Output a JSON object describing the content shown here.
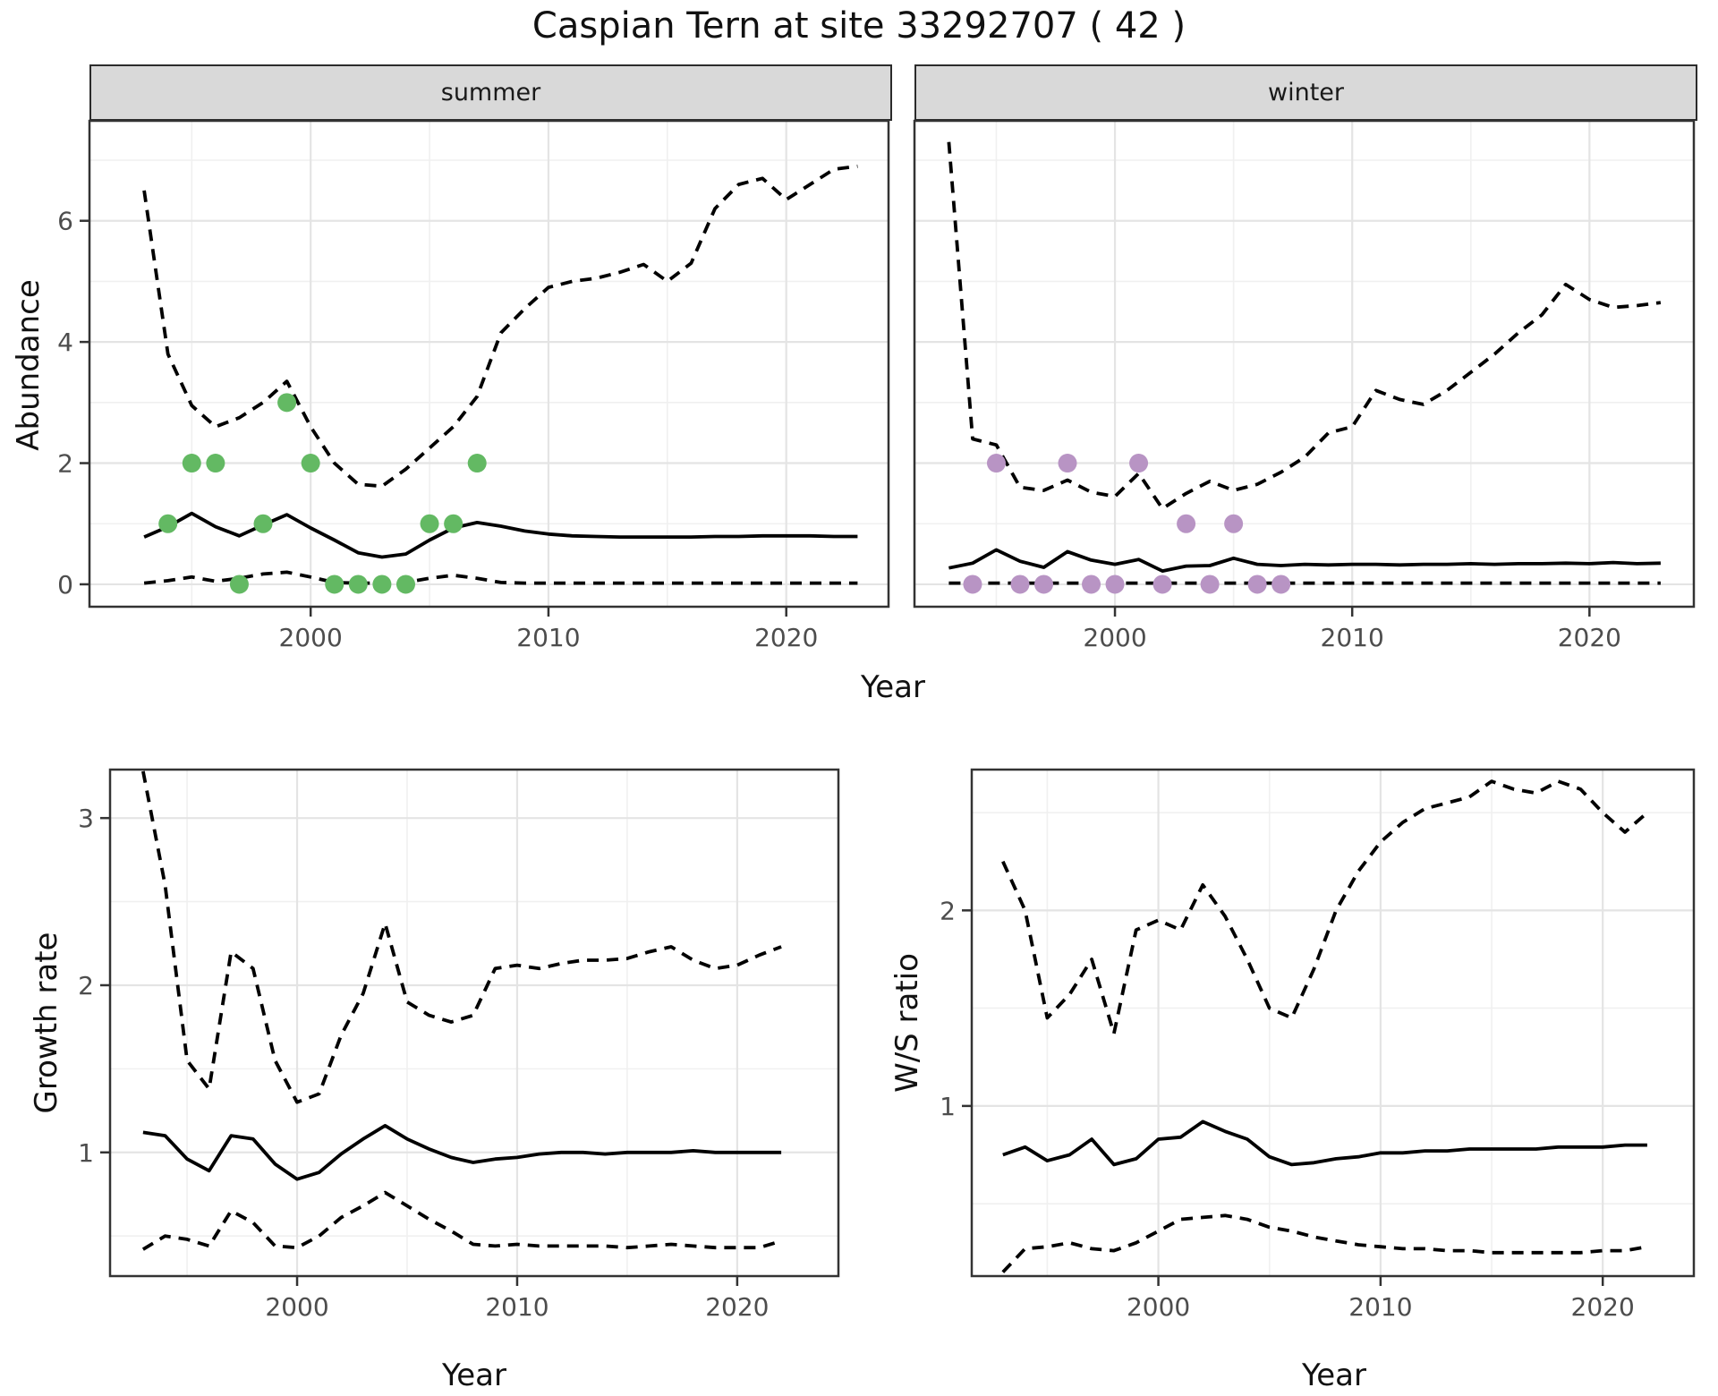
{
  "title": "Caspian Tern at site 33292707 ( 42 )",
  "facets": {
    "summer_label": "summer",
    "winter_label": "winter"
  },
  "axis_titles": {
    "x": "Year",
    "abundance": "Abundance",
    "growth": "Growth rate",
    "ws": "W/S ratio"
  },
  "colors": {
    "summer_points": "#63b963",
    "winter_points": "#b894c4",
    "line": "#000000",
    "panel_border": "#333333",
    "grid_major": "#e4e4e4",
    "grid_minor": "#f0f0f0",
    "strip_fill": "#d9d9d9",
    "tick_label": "#4d4d4d",
    "background": "#ffffff"
  },
  "chart_data": [
    {
      "id": "abundance-summer",
      "type": "line",
      "facet": "summer",
      "xlabel": "Year",
      "ylabel": "Abundance",
      "x_tick_labels": [
        "2000",
        "2010",
        "2020"
      ],
      "y_tick_labels": [
        "0",
        "2",
        "4",
        "6"
      ],
      "xlim": [
        1990.7,
        2024.3
      ],
      "ylim": [
        -0.37,
        7.65
      ],
      "grid": true,
      "legend": "none",
      "years": [
        1993,
        1994,
        1995,
        1996,
        1997,
        1998,
        1999,
        2000,
        2001,
        2002,
        2003,
        2004,
        2005,
        2006,
        2007,
        2008,
        2009,
        2010,
        2011,
        2012,
        2013,
        2014,
        2015,
        2016,
        2017,
        2018,
        2019,
        2020,
        2021,
        2022,
        2023
      ],
      "series": [
        {
          "name": "median",
          "style": "solid",
          "values": [
            0.78,
            0.95,
            1.17,
            0.95,
            0.8,
            0.98,
            1.15,
            0.93,
            0.73,
            0.52,
            0.45,
            0.5,
            0.73,
            0.93,
            1.02,
            0.96,
            0.88,
            0.83,
            0.8,
            0.79,
            0.78,
            0.78,
            0.78,
            0.78,
            0.79,
            0.79,
            0.8,
            0.8,
            0.8,
            0.79,
            0.79
          ]
        },
        {
          "name": "upper-ci",
          "style": "dashed",
          "values": [
            6.5,
            3.8,
            2.95,
            2.6,
            2.75,
            3.0,
            3.35,
            2.6,
            2.0,
            1.65,
            1.62,
            1.9,
            2.25,
            2.6,
            3.1,
            4.15,
            4.55,
            4.9,
            5.0,
            5.05,
            5.15,
            5.28,
            5.0,
            5.3,
            6.2,
            6.6,
            6.7,
            6.35,
            6.6,
            6.85,
            6.9
          ]
        },
        {
          "name": "lower-ci",
          "style": "dashed",
          "values": [
            0.02,
            0.06,
            0.12,
            0.05,
            0.1,
            0.17,
            0.2,
            0.12,
            0.03,
            0.02,
            0.02,
            0.03,
            0.1,
            0.15,
            0.1,
            0.03,
            0.02,
            0.02,
            0.02,
            0.02,
            0.02,
            0.02,
            0.02,
            0.02,
            0.02,
            0.02,
            0.02,
            0.02,
            0.02,
            0.02,
            0.02
          ]
        }
      ],
      "observations": [
        [
          1994,
          1
        ],
        [
          1995,
          2
        ],
        [
          1996,
          2
        ],
        [
          1997,
          0
        ],
        [
          1998,
          1
        ],
        [
          1999,
          3
        ],
        [
          2000,
          2
        ],
        [
          2001,
          0
        ],
        [
          2002,
          0
        ],
        [
          2003,
          0
        ],
        [
          2004,
          0
        ],
        [
          2005,
          1
        ],
        [
          2006,
          1
        ],
        [
          2007,
          2
        ]
      ],
      "point_color": "#63b963"
    },
    {
      "id": "abundance-winter",
      "type": "line",
      "facet": "winter",
      "xlabel": "Year",
      "ylabel": "Abundance",
      "x_tick_labels": [
        "2000",
        "2010",
        "2020"
      ],
      "y_tick_labels": [],
      "xlim": [
        1991.55,
        2024.4
      ],
      "ylim": [
        -0.37,
        7.65
      ],
      "grid": true,
      "legend": "none",
      "years": [
        1993,
        1994,
        1995,
        1996,
        1997,
        1998,
        1999,
        2000,
        2001,
        2002,
        2003,
        2004,
        2005,
        2006,
        2007,
        2008,
        2009,
        2010,
        2011,
        2012,
        2013,
        2014,
        2015,
        2016,
        2017,
        2018,
        2019,
        2020,
        2021,
        2022,
        2023
      ],
      "series": [
        {
          "name": "median",
          "style": "solid",
          "values": [
            0.27,
            0.35,
            0.57,
            0.38,
            0.28,
            0.54,
            0.4,
            0.33,
            0.41,
            0.22,
            0.3,
            0.31,
            0.43,
            0.33,
            0.31,
            0.33,
            0.32,
            0.33,
            0.33,
            0.32,
            0.33,
            0.33,
            0.34,
            0.33,
            0.34,
            0.34,
            0.35,
            0.34,
            0.36,
            0.34,
            0.35
          ]
        },
        {
          "name": "upper-ci",
          "style": "dashed",
          "values": [
            7.3,
            2.4,
            2.3,
            1.6,
            1.55,
            1.72,
            1.52,
            1.45,
            1.83,
            1.25,
            1.5,
            1.7,
            1.55,
            1.65,
            1.85,
            2.1,
            2.5,
            2.6,
            3.2,
            3.05,
            2.97,
            3.2,
            3.5,
            3.8,
            4.15,
            4.45,
            4.95,
            4.7,
            4.57,
            4.6,
            4.65
          ]
        },
        {
          "name": "lower-ci",
          "style": "dashed",
          "values": [
            0.02,
            0.02,
            0.02,
            0.02,
            0.02,
            0.02,
            0.02,
            0.02,
            0.02,
            0.02,
            0.02,
            0.02,
            0.02,
            0.02,
            0.02,
            0.02,
            0.02,
            0.02,
            0.02,
            0.02,
            0.02,
            0.02,
            0.02,
            0.02,
            0.02,
            0.02,
            0.02,
            0.02,
            0.02,
            0.02,
            0.02
          ]
        }
      ],
      "observations": [
        [
          1994,
          0
        ],
        [
          1995,
          2
        ],
        [
          1996,
          0
        ],
        [
          1997,
          0
        ],
        [
          1998,
          2
        ],
        [
          1999,
          0
        ],
        [
          2000,
          0
        ],
        [
          2001,
          2
        ],
        [
          2002,
          0
        ],
        [
          2003,
          1
        ],
        [
          2004,
          0
        ],
        [
          2005,
          1
        ],
        [
          2006,
          0
        ],
        [
          2007,
          0
        ]
      ],
      "point_color": "#b894c4"
    },
    {
      "id": "growth-rate",
      "type": "line",
      "facet": null,
      "xlabel": "Year",
      "ylabel": "Growth rate",
      "x_tick_labels": [
        "2000",
        "2010",
        "2020"
      ],
      "y_tick_labels": [
        "1",
        "2",
        "3"
      ],
      "xlim": [
        1991.5,
        2024.6
      ],
      "ylim": [
        0.26,
        3.29
      ],
      "grid": true,
      "legend": "none",
      "years": [
        1993,
        1994,
        1995,
        1996,
        1997,
        1998,
        1999,
        2000,
        2001,
        2002,
        2003,
        2004,
        2005,
        2006,
        2007,
        2008,
        2009,
        2010,
        2011,
        2012,
        2013,
        2014,
        2015,
        2016,
        2017,
        2018,
        2019,
        2020,
        2021,
        2022
      ],
      "series": [
        {
          "name": "median",
          "style": "solid",
          "values": [
            1.12,
            1.1,
            0.96,
            0.89,
            1.1,
            1.08,
            0.93,
            0.84,
            0.88,
            0.99,
            1.08,
            1.16,
            1.08,
            1.02,
            0.97,
            0.94,
            0.96,
            0.97,
            0.99,
            1.0,
            1.0,
            0.99,
            1.0,
            1.0,
            1.0,
            1.01,
            1.0,
            1.0,
            1.0,
            1.0
          ]
        },
        {
          "name": "upper-ci",
          "style": "dashed",
          "values": [
            3.28,
            2.6,
            1.55,
            1.38,
            2.2,
            2.1,
            1.55,
            1.3,
            1.35,
            1.7,
            1.95,
            2.37,
            1.9,
            1.82,
            1.78,
            1.82,
            2.1,
            2.12,
            2.1,
            2.13,
            2.15,
            2.15,
            2.16,
            2.2,
            2.23,
            2.15,
            2.1,
            2.12,
            2.18,
            2.23
          ]
        },
        {
          "name": "lower-ci",
          "style": "dashed",
          "values": [
            0.42,
            0.5,
            0.48,
            0.44,
            0.65,
            0.58,
            0.44,
            0.43,
            0.5,
            0.61,
            0.68,
            0.76,
            0.68,
            0.6,
            0.53,
            0.45,
            0.44,
            0.45,
            0.44,
            0.44,
            0.44,
            0.44,
            0.43,
            0.44,
            0.45,
            0.44,
            0.43,
            0.43,
            0.43,
            0.47
          ]
        }
      ],
      "observations": [],
      "point_color": null
    },
    {
      "id": "ws-ratio",
      "type": "line",
      "facet": null,
      "xlabel": "Year",
      "ylabel": "W/S ratio",
      "x_tick_labels": [
        "2000",
        "2010",
        "2020"
      ],
      "y_tick_labels": [
        "1",
        "2"
      ],
      "xlim": [
        1991.6,
        2024.1
      ],
      "ylim": [
        0.13,
        2.72
      ],
      "grid": true,
      "legend": "none",
      "years": [
        1993,
        1994,
        1995,
        1996,
        1997,
        1998,
        1999,
        2000,
        2001,
        2002,
        2003,
        2004,
        2005,
        2006,
        2007,
        2008,
        2009,
        2010,
        2011,
        2012,
        2013,
        2014,
        2015,
        2016,
        2017,
        2018,
        2019,
        2020,
        2021,
        2022
      ],
      "series": [
        {
          "name": "median",
          "style": "solid",
          "values": [
            0.75,
            0.79,
            0.72,
            0.75,
            0.83,
            0.7,
            0.73,
            0.83,
            0.84,
            0.92,
            0.87,
            0.83,
            0.74,
            0.7,
            0.71,
            0.73,
            0.74,
            0.76,
            0.76,
            0.77,
            0.77,
            0.78,
            0.78,
            0.78,
            0.78,
            0.79,
            0.79,
            0.79,
            0.8,
            0.8
          ]
        },
        {
          "name": "upper-ci",
          "style": "dashed",
          "values": [
            2.25,
            2.0,
            1.45,
            1.57,
            1.75,
            1.37,
            1.9,
            1.95,
            1.9,
            2.13,
            1.97,
            1.75,
            1.5,
            1.45,
            1.7,
            2.0,
            2.2,
            2.35,
            2.45,
            2.52,
            2.55,
            2.58,
            2.66,
            2.62,
            2.6,
            2.66,
            2.62,
            2.5,
            2.4,
            2.5
          ]
        },
        {
          "name": "lower-ci",
          "style": "dashed",
          "values": [
            0.15,
            0.27,
            0.28,
            0.3,
            0.27,
            0.26,
            0.3,
            0.36,
            0.42,
            0.43,
            0.44,
            0.42,
            0.38,
            0.36,
            0.33,
            0.31,
            0.29,
            0.28,
            0.27,
            0.27,
            0.26,
            0.26,
            0.25,
            0.25,
            0.25,
            0.25,
            0.25,
            0.26,
            0.26,
            0.28
          ]
        }
      ],
      "observations": [],
      "point_color": null
    }
  ]
}
